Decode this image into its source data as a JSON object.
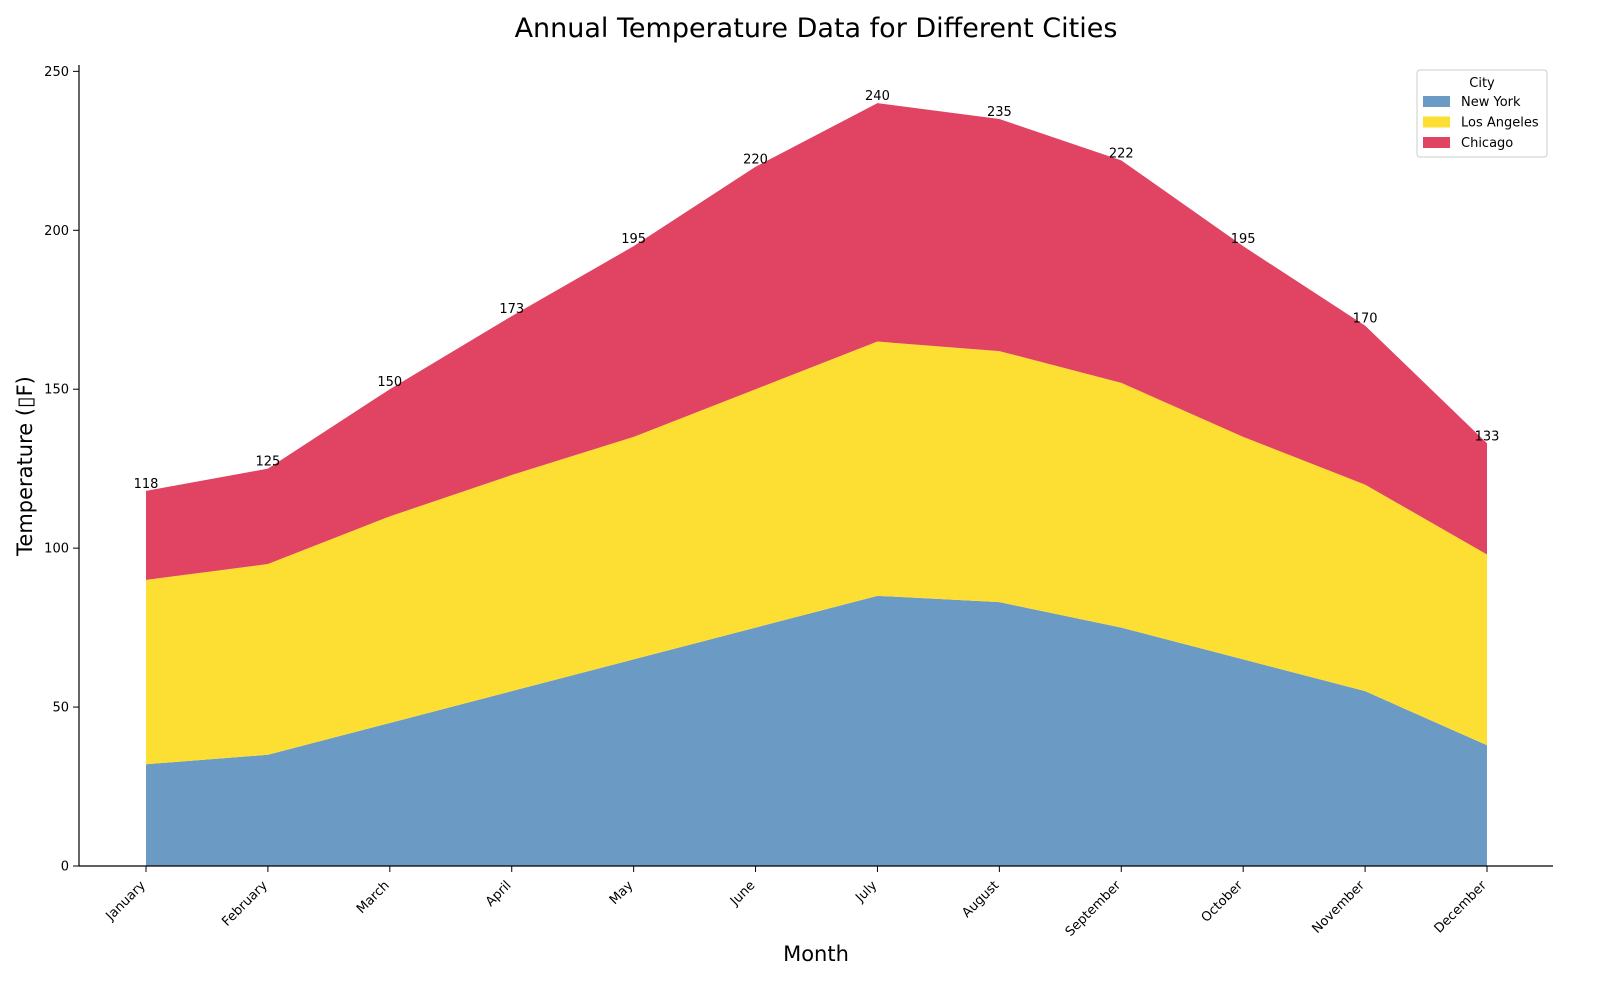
{
  "chart_data": {
    "type": "area",
    "stacked": true,
    "title": "Annual Temperature Data for Different Cities",
    "xlabel": "Month",
    "ylabel": "Temperature (▯F)",
    "categories": [
      "January",
      "February",
      "March",
      "April",
      "May",
      "June",
      "July",
      "August",
      "September",
      "October",
      "November",
      "December"
    ],
    "series": [
      {
        "name": "New York",
        "color": "#6b9ac4",
        "values": [
          32,
          35,
          45,
          55,
          65,
          75,
          85,
          83,
          75,
          65,
          55,
          38
        ]
      },
      {
        "name": "Los Angeles",
        "color": "#fddf33",
        "values": [
          58,
          60,
          65,
          68,
          70,
          75,
          80,
          79,
          77,
          70,
          65,
          60
        ]
      },
      {
        "name": "Chicago",
        "color": "#e14462",
        "values": [
          28,
          30,
          40,
          50,
          60,
          70,
          75,
          73,
          70,
          60,
          50,
          35
        ]
      }
    ],
    "totals": [
      118,
      125,
      150,
      173,
      195,
      220,
      240,
      235,
      222,
      195,
      170,
      133
    ],
    "ylim": [
      0,
      252
    ],
    "yticks": [
      0,
      50,
      100,
      150,
      200,
      250
    ],
    "grid": false,
    "legend": {
      "title": "City",
      "placement": "top-right"
    }
  }
}
